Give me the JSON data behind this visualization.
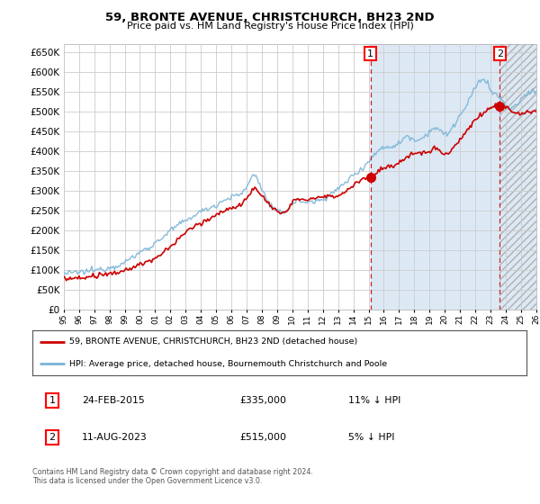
{
  "title": "59, BRONTE AVENUE, CHRISTCHURCH, BH23 2ND",
  "subtitle": "Price paid vs. HM Land Registry's House Price Index (HPI)",
  "legend_line1": "59, BRONTE AVENUE, CHRISTCHURCH, BH23 2ND (detached house)",
  "legend_line2": "HPI: Average price, detached house, Bournemouth Christchurch and Poole",
  "transaction1_date": "24-FEB-2015",
  "transaction1_price": 335000,
  "transaction1_pct": "11% ↓ HPI",
  "transaction2_date": "11-AUG-2023",
  "transaction2_price": 515000,
  "transaction2_pct": "5% ↓ HPI",
  "footnote": "Contains HM Land Registry data © Crown copyright and database right 2024.\nThis data is licensed under the Open Government Licence v3.0.",
  "hpi_color": "#7ab4d8",
  "price_color": "#cc0000",
  "marker_color": "#cc0000",
  "vline_color": "#cc0000",
  "shade_color": "#dce9f5",
  "grid_color": "#cccccc",
  "bg_color": "#ffffff",
  "plot_bg_color": "#ffffff",
  "ylim": [
    0,
    670000
  ],
  "yticks": [
    0,
    50000,
    100000,
    150000,
    200000,
    250000,
    300000,
    350000,
    400000,
    450000,
    500000,
    550000,
    600000,
    650000
  ],
  "x_start_year": 1995,
  "x_end_year": 2026,
  "transaction1_x": 2015.12,
  "transaction2_x": 2023.62
}
